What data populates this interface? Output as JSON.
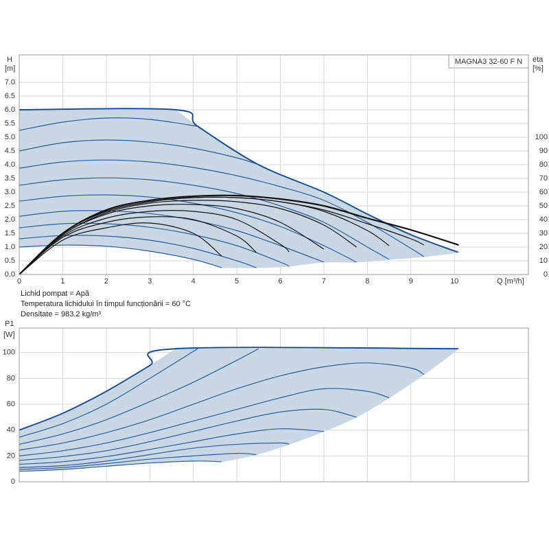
{
  "chart_data": [
    {
      "type": "line",
      "ylabel": [
        "H",
        "[m]"
      ],
      "y2label": [
        "eta",
        "[%]"
      ],
      "xlabel": "Q [m³/h]",
      "annotation": "MAGNA3 32-60 F N",
      "notes": [
        "Lichid pompat = Apă",
        "Temperatura lichidului în timpul funcționării = 60 °C",
        "Densitate = 983.2 kg/m³"
      ],
      "xlim": [
        0,
        11.7
      ],
      "ylim": [
        0,
        8
      ],
      "y2lim": [
        0,
        160
      ],
      "xticks": [
        0,
        1,
        2,
        3,
        4,
        5,
        6,
        7,
        8,
        9,
        10
      ],
      "yticks": [
        {
          "value": 0,
          "label": "0.0"
        },
        0.5,
        {
          "value": 1,
          "label": "1.0"
        },
        1.5,
        {
          "value": 2,
          "label": "2.0"
        },
        2.5,
        {
          "value": 3,
          "label": "3.0"
        },
        3.5,
        {
          "value": 4,
          "label": "4.0"
        },
        4.5,
        {
          "value": 5,
          "label": "5.0"
        },
        5.5,
        {
          "value": 6,
          "label": "6.0"
        },
        6.5,
        {
          "value": 7,
          "label": "7.0"
        }
      ],
      "y2ticks": [
        0,
        10,
        20,
        30,
        40,
        50,
        60,
        70,
        80,
        90,
        100
      ],
      "grid": true,
      "fill": "#c9d6e3",
      "series": [
        {
          "color": "#1b4f91",
          "width": 2,
          "x": [
            0,
            3.6,
            4.1,
            5.5,
            7,
            8,
            9,
            10.1
          ],
          "values": [
            6,
            6,
            5.4,
            4.0,
            3.0,
            2.2,
            1.45,
            0.8
          ]
        },
        {
          "color": "#c9d6e3",
          "width": 1,
          "x": [
            4.65,
            5.45,
            6.2,
            7,
            7.75,
            8.5,
            9.3,
            10.1
          ],
          "values": [
            0.25,
            0.25,
            0.3,
            0.45,
            0.45,
            0.55,
            0.65,
            0.8
          ]
        },
        {
          "color": "#2a5c99",
          "width": 1.2,
          "x": [
            0,
            1,
            2,
            3,
            4,
            4.65
          ],
          "values": [
            1.0,
            1.07,
            1.03,
            0.85,
            0.55,
            0.25
          ]
        },
        {
          "color": "#2a5c99",
          "width": 1.2,
          "x": [
            0,
            1,
            2,
            3,
            4,
            5,
            5.45
          ],
          "values": [
            1.3,
            1.42,
            1.4,
            1.25,
            0.95,
            0.5,
            0.25
          ]
        },
        {
          "color": "#2a5c99",
          "width": 1.2,
          "x": [
            0,
            1,
            2,
            3,
            4,
            5,
            6,
            6.2
          ],
          "values": [
            1.7,
            1.85,
            1.85,
            1.72,
            1.45,
            1.05,
            0.45,
            0.3
          ]
        },
        {
          "color": "#2a5c99",
          "width": 1.2,
          "x": [
            0,
            1,
            2,
            3,
            4,
            5,
            6,
            7
          ],
          "values": [
            2.12,
            2.3,
            2.32,
            2.22,
            1.98,
            1.6,
            1.05,
            0.45
          ]
        },
        {
          "color": "#2a5c99",
          "width": 1.2,
          "x": [
            0,
            1,
            2,
            3,
            4,
            5,
            6,
            7,
            7.75
          ],
          "values": [
            2.67,
            2.85,
            2.9,
            2.82,
            2.6,
            2.25,
            1.75,
            1.05,
            0.45
          ]
        },
        {
          "color": "#2a5c99",
          "width": 1.2,
          "x": [
            0,
            1,
            2,
            3,
            4,
            5,
            6,
            7,
            8,
            8.5
          ],
          "values": [
            3.25,
            3.45,
            3.52,
            3.45,
            3.25,
            2.95,
            2.5,
            1.9,
            1.0,
            0.55
          ]
        },
        {
          "color": "#2a5c99",
          "width": 1.2,
          "x": [
            0,
            1,
            2,
            3,
            4,
            5,
            6,
            7,
            8,
            9,
            9.3
          ],
          "values": [
            3.87,
            4.1,
            4.17,
            4.1,
            3.9,
            3.6,
            3.2,
            2.7,
            1.9,
            0.95,
            0.65
          ]
        },
        {
          "color": "#2a5c99",
          "width": 1.2,
          "x": [
            0,
            1,
            2,
            3,
            4,
            5,
            5.5
          ],
          "values": [
            4.5,
            4.8,
            4.9,
            4.82,
            4.6,
            4.25,
            4.0
          ]
        },
        {
          "color": "#2a5c99",
          "width": 1.2,
          "x": [
            0,
            1,
            2,
            3,
            4.1
          ],
          "values": [
            5.25,
            5.55,
            5.7,
            5.65,
            5.4
          ]
        },
        {
          "color": "#111111",
          "width": 1.2,
          "axis": "y2",
          "x": [
            0,
            1,
            2,
            3,
            4,
            4.65
          ],
          "values": [
            0,
            25,
            34,
            37.5,
            30,
            13.5
          ]
        },
        {
          "color": "#111111",
          "width": 1.2,
          "axis": "y2",
          "x": [
            0,
            1,
            2,
            3,
            4,
            5,
            5.45
          ],
          "values": [
            0,
            27,
            38,
            42,
            40,
            28,
            16
          ]
        },
        {
          "color": "#111111",
          "width": 1.2,
          "axis": "y2",
          "x": [
            0,
            1,
            2,
            3,
            4,
            5,
            6,
            6.2
          ],
          "values": [
            0,
            28,
            41,
            46,
            46,
            40,
            22,
            16.5
          ]
        },
        {
          "color": "#111111",
          "width": 1.2,
          "axis": "y2",
          "x": [
            0,
            1,
            2,
            3,
            4,
            5,
            6,
            7
          ],
          "values": [
            0,
            29,
            44,
            50,
            51,
            48,
            38,
            18.5
          ]
        },
        {
          "color": "#111111",
          "width": 1.2,
          "axis": "y2",
          "x": [
            0,
            1,
            2,
            3,
            4,
            5,
            6,
            7,
            7.75
          ],
          "values": [
            0,
            29,
            45,
            52,
            54,
            53,
            48,
            36,
            20
          ]
        },
        {
          "color": "#111111",
          "width": 1.2,
          "axis": "y2",
          "x": [
            0,
            1,
            2,
            3,
            4,
            5,
            6,
            7,
            8,
            8.5
          ],
          "values": [
            0,
            30,
            46,
            53,
            56,
            56,
            53,
            46,
            32,
            21
          ]
        },
        {
          "color": "#111111",
          "width": 1.2,
          "axis": "y2",
          "x": [
            0,
            1,
            2,
            3,
            4,
            5,
            6,
            7,
            8,
            9,
            9.3
          ],
          "values": [
            0,
            30,
            46,
            53,
            56,
            56,
            53,
            47,
            37,
            26,
            21.5
          ]
        },
        {
          "color": "#111111",
          "width": 2.2,
          "axis": "y2",
          "x": [
            0,
            1,
            2,
            3,
            4,
            5,
            6,
            7,
            8,
            9,
            10.1
          ],
          "values": [
            0,
            30,
            47,
            54,
            57,
            57.5,
            55,
            50,
            41,
            32.5,
            21.5
          ]
        }
      ]
    },
    {
      "type": "line",
      "ylabel": [
        "P1",
        "[W]"
      ],
      "xlim": [
        0,
        11.7
      ],
      "ylim": [
        0,
        119
      ],
      "yticks": [
        0,
        20,
        40,
        60,
        80,
        100
      ],
      "grid": true,
      "fill": "#c9d6e3",
      "series": [
        {
          "color": "#1b4f91",
          "width": 2,
          "x": [
            0,
            1,
            2,
            3,
            3.6,
            10.1
          ],
          "values": [
            40,
            53,
            70,
            90,
            103,
            103
          ]
        },
        {
          "color": "#c9d6e3",
          "width": 1,
          "x": [
            4.65,
            5.45,
            6.2,
            7,
            7.75,
            8.5,
            9.3,
            10.1
          ],
          "values": [
            15.5,
            21,
            29,
            39,
            50,
            65,
            83,
            103
          ]
        },
        {
          "color": "#2a5c99",
          "width": 1.2,
          "x": [
            0,
            1,
            2,
            3,
            4,
            4.65
          ],
          "values": [
            8,
            9.5,
            12,
            14.5,
            16,
            15.5
          ]
        },
        {
          "color": "#2a5c99",
          "width": 1.2,
          "x": [
            0,
            1,
            2,
            3,
            4,
            5,
            5.45
          ],
          "values": [
            9.5,
            11,
            14,
            17.5,
            20,
            22,
            21
          ]
        },
        {
          "color": "#2a5c99",
          "width": 1.2,
          "x": [
            0,
            1,
            2,
            3,
            4,
            5,
            6,
            6.2
          ],
          "values": [
            11,
            12.5,
            16,
            21,
            26,
            29,
            30,
            29
          ]
        },
        {
          "color": "#2a5c99",
          "width": 1.2,
          "x": [
            0,
            1,
            2,
            3,
            4,
            5,
            6,
            7
          ],
          "values": [
            13.5,
            15.5,
            19.5,
            25,
            31,
            37,
            41,
            39
          ]
        },
        {
          "color": "#2a5c99",
          "width": 1.2,
          "x": [
            0,
            1,
            2,
            3,
            4,
            5,
            6,
            7,
            7.75
          ],
          "values": [
            16.5,
            19.5,
            24,
            31,
            39,
            47,
            54,
            56,
            50
          ]
        },
        {
          "color": "#2a5c99",
          "width": 1.2,
          "x": [
            0,
            1,
            2,
            3,
            4,
            5,
            6,
            7,
            8,
            8.5
          ],
          "values": [
            20,
            24,
            30,
            38,
            47,
            56,
            65,
            72,
            70,
            65
          ]
        },
        {
          "color": "#2a5c99",
          "width": 1.2,
          "x": [
            0,
            1,
            2,
            3,
            4,
            5,
            6,
            7,
            8,
            9,
            9.3
          ],
          "values": [
            24.5,
            30,
            38,
            48,
            60,
            72,
            82,
            89,
            92,
            88,
            83
          ]
        },
        {
          "color": "#2a5c99",
          "width": 1.2,
          "x": [
            0,
            1,
            2,
            3,
            4,
            5,
            5.5
          ],
          "values": [
            29,
            37,
            48,
            62,
            77,
            94,
            103
          ]
        },
        {
          "color": "#2a5c99",
          "width": 1.2,
          "x": [
            0,
            1,
            2,
            3,
            4.1
          ],
          "values": [
            34.5,
            45,
            60,
            80,
            103
          ]
        }
      ]
    }
  ]
}
